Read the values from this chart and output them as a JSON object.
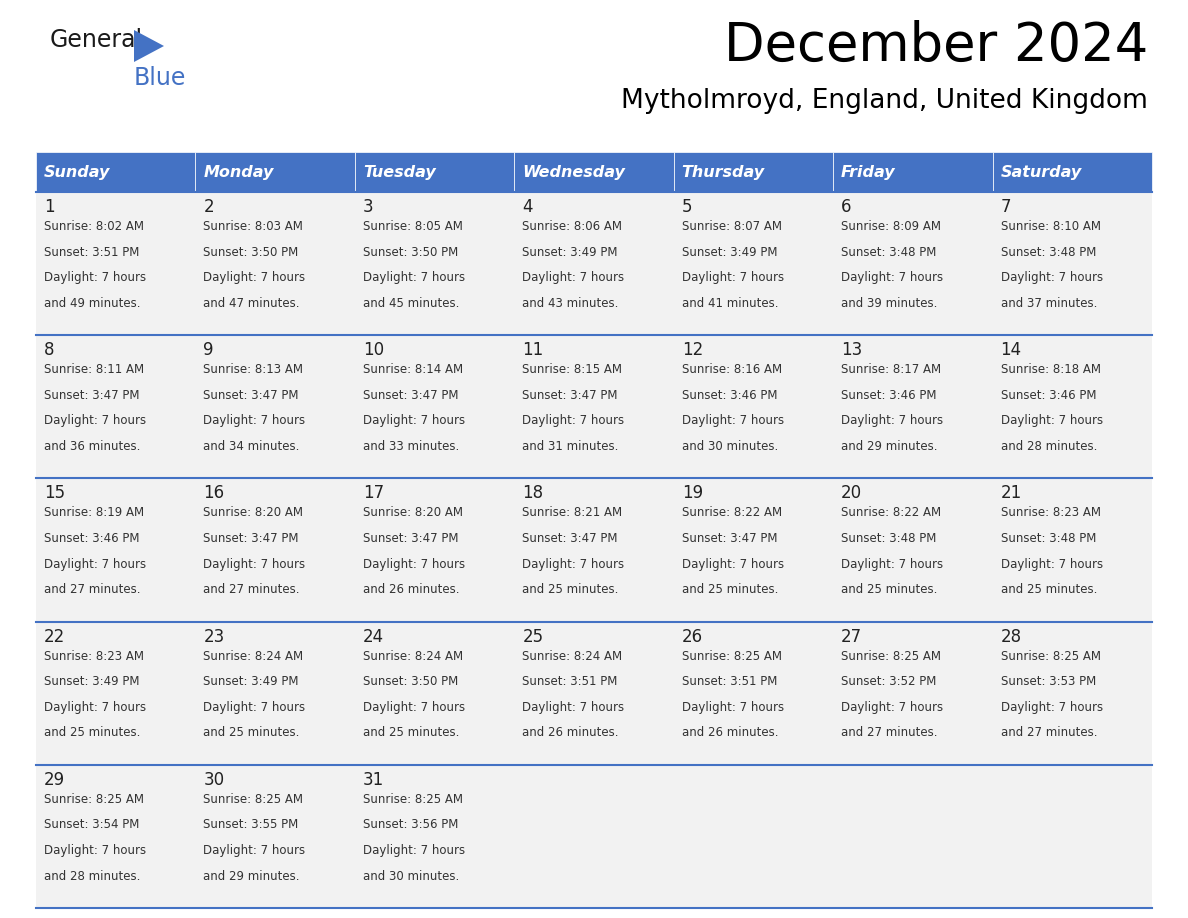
{
  "title": "December 2024",
  "subtitle": "Mytholmroyd, England, United Kingdom",
  "header_bg": "#4472C4",
  "header_text": "#FFFFFF",
  "row_bg_all": "#F2F2F2",
  "separator_color": "#4472C4",
  "day_names": [
    "Sunday",
    "Monday",
    "Tuesday",
    "Wednesday",
    "Thursday",
    "Friday",
    "Saturday"
  ],
  "days": [
    {
      "date": 1,
      "col": 0,
      "row": 0,
      "sunrise": "8:02 AM",
      "sunset": "3:51 PM",
      "daylight": "7 hours and 49 minutes."
    },
    {
      "date": 2,
      "col": 1,
      "row": 0,
      "sunrise": "8:03 AM",
      "sunset": "3:50 PM",
      "daylight": "7 hours and 47 minutes."
    },
    {
      "date": 3,
      "col": 2,
      "row": 0,
      "sunrise": "8:05 AM",
      "sunset": "3:50 PM",
      "daylight": "7 hours and 45 minutes."
    },
    {
      "date": 4,
      "col": 3,
      "row": 0,
      "sunrise": "8:06 AM",
      "sunset": "3:49 PM",
      "daylight": "7 hours and 43 minutes."
    },
    {
      "date": 5,
      "col": 4,
      "row": 0,
      "sunrise": "8:07 AM",
      "sunset": "3:49 PM",
      "daylight": "7 hours and 41 minutes."
    },
    {
      "date": 6,
      "col": 5,
      "row": 0,
      "sunrise": "8:09 AM",
      "sunset": "3:48 PM",
      "daylight": "7 hours and 39 minutes."
    },
    {
      "date": 7,
      "col": 6,
      "row": 0,
      "sunrise": "8:10 AM",
      "sunset": "3:48 PM",
      "daylight": "7 hours and 37 minutes."
    },
    {
      "date": 8,
      "col": 0,
      "row": 1,
      "sunrise": "8:11 AM",
      "sunset": "3:47 PM",
      "daylight": "7 hours and 36 minutes."
    },
    {
      "date": 9,
      "col": 1,
      "row": 1,
      "sunrise": "8:13 AM",
      "sunset": "3:47 PM",
      "daylight": "7 hours and 34 minutes."
    },
    {
      "date": 10,
      "col": 2,
      "row": 1,
      "sunrise": "8:14 AM",
      "sunset": "3:47 PM",
      "daylight": "7 hours and 33 minutes."
    },
    {
      "date": 11,
      "col": 3,
      "row": 1,
      "sunrise": "8:15 AM",
      "sunset": "3:47 PM",
      "daylight": "7 hours and 31 minutes."
    },
    {
      "date": 12,
      "col": 4,
      "row": 1,
      "sunrise": "8:16 AM",
      "sunset": "3:46 PM",
      "daylight": "7 hours and 30 minutes."
    },
    {
      "date": 13,
      "col": 5,
      "row": 1,
      "sunrise": "8:17 AM",
      "sunset": "3:46 PM",
      "daylight": "7 hours and 29 minutes."
    },
    {
      "date": 14,
      "col": 6,
      "row": 1,
      "sunrise": "8:18 AM",
      "sunset": "3:46 PM",
      "daylight": "7 hours and 28 minutes."
    },
    {
      "date": 15,
      "col": 0,
      "row": 2,
      "sunrise": "8:19 AM",
      "sunset": "3:46 PM",
      "daylight": "7 hours and 27 minutes."
    },
    {
      "date": 16,
      "col": 1,
      "row": 2,
      "sunrise": "8:20 AM",
      "sunset": "3:47 PM",
      "daylight": "7 hours and 27 minutes."
    },
    {
      "date": 17,
      "col": 2,
      "row": 2,
      "sunrise": "8:20 AM",
      "sunset": "3:47 PM",
      "daylight": "7 hours and 26 minutes."
    },
    {
      "date": 18,
      "col": 3,
      "row": 2,
      "sunrise": "8:21 AM",
      "sunset": "3:47 PM",
      "daylight": "7 hours and 25 minutes."
    },
    {
      "date": 19,
      "col": 4,
      "row": 2,
      "sunrise": "8:22 AM",
      "sunset": "3:47 PM",
      "daylight": "7 hours and 25 minutes."
    },
    {
      "date": 20,
      "col": 5,
      "row": 2,
      "sunrise": "8:22 AM",
      "sunset": "3:48 PM",
      "daylight": "7 hours and 25 minutes."
    },
    {
      "date": 21,
      "col": 6,
      "row": 2,
      "sunrise": "8:23 AM",
      "sunset": "3:48 PM",
      "daylight": "7 hours and 25 minutes."
    },
    {
      "date": 22,
      "col": 0,
      "row": 3,
      "sunrise": "8:23 AM",
      "sunset": "3:49 PM",
      "daylight": "7 hours and 25 minutes."
    },
    {
      "date": 23,
      "col": 1,
      "row": 3,
      "sunrise": "8:24 AM",
      "sunset": "3:49 PM",
      "daylight": "7 hours and 25 minutes."
    },
    {
      "date": 24,
      "col": 2,
      "row": 3,
      "sunrise": "8:24 AM",
      "sunset": "3:50 PM",
      "daylight": "7 hours and 25 minutes."
    },
    {
      "date": 25,
      "col": 3,
      "row": 3,
      "sunrise": "8:24 AM",
      "sunset": "3:51 PM",
      "daylight": "7 hours and 26 minutes."
    },
    {
      "date": 26,
      "col": 4,
      "row": 3,
      "sunrise": "8:25 AM",
      "sunset": "3:51 PM",
      "daylight": "7 hours and 26 minutes."
    },
    {
      "date": 27,
      "col": 5,
      "row": 3,
      "sunrise": "8:25 AM",
      "sunset": "3:52 PM",
      "daylight": "7 hours and 27 minutes."
    },
    {
      "date": 28,
      "col": 6,
      "row": 3,
      "sunrise": "8:25 AM",
      "sunset": "3:53 PM",
      "daylight": "7 hours and 27 minutes."
    },
    {
      "date": 29,
      "col": 0,
      "row": 4,
      "sunrise": "8:25 AM",
      "sunset": "3:54 PM",
      "daylight": "7 hours and 28 minutes."
    },
    {
      "date": 30,
      "col": 1,
      "row": 4,
      "sunrise": "8:25 AM",
      "sunset": "3:55 PM",
      "daylight": "7 hours and 29 minutes."
    },
    {
      "date": 31,
      "col": 2,
      "row": 4,
      "sunrise": "8:25 AM",
      "sunset": "3:56 PM",
      "daylight": "7 hours and 30 minutes."
    }
  ]
}
